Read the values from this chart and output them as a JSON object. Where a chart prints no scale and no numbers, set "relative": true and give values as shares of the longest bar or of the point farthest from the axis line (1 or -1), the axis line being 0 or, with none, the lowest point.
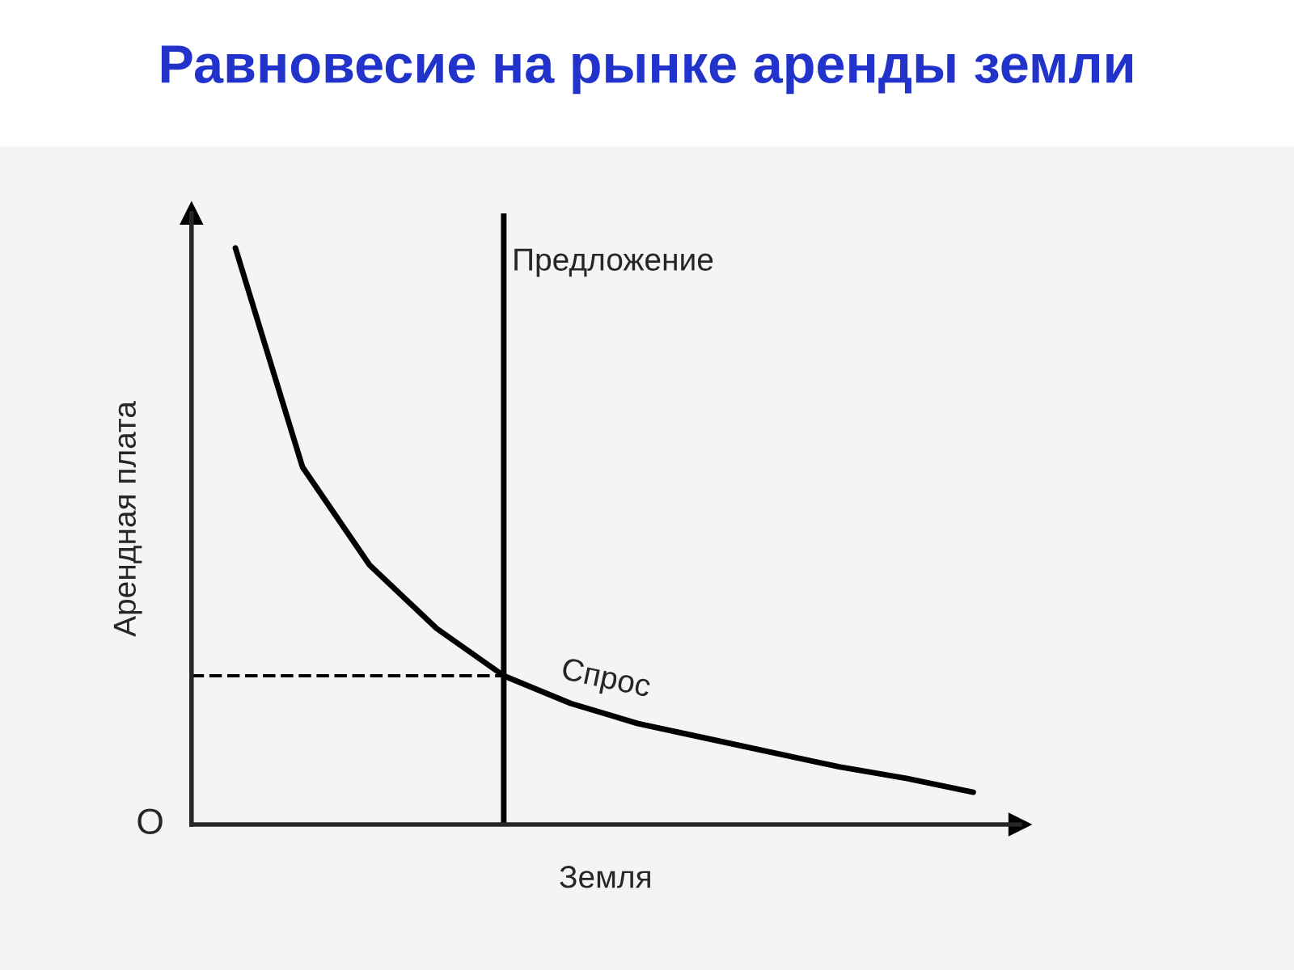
{
  "chart_data": {
    "type": "line",
    "title": "Равновесие на рынке аренды земли",
    "xlabel": "Земля",
    "ylabel": "Арендная плата",
    "relative": true,
    "tick_labels": false,
    "legend": false,
    "categories": [
      null,
      null,
      null,
      null,
      null,
      null,
      null,
      null,
      null,
      null,
      null,
      null
    ],
    "series": [
      {
        "color": "#000000",
        "values": [
          1.0,
          0.62,
          0.45,
          0.34,
          0.258,
          0.21,
          0.175,
          0.15,
          0.125,
          0.1,
          0.08,
          0.056
        ]
      }
    ],
    "ref_lines": [
      {
        "axis": "y",
        "value": 0.258,
        "color": "#000000",
        "line_style": "dashed"
      }
    ],
    "annotations": [
      "Спрос",
      "O",
      "Предложение"
    ]
  }
}
